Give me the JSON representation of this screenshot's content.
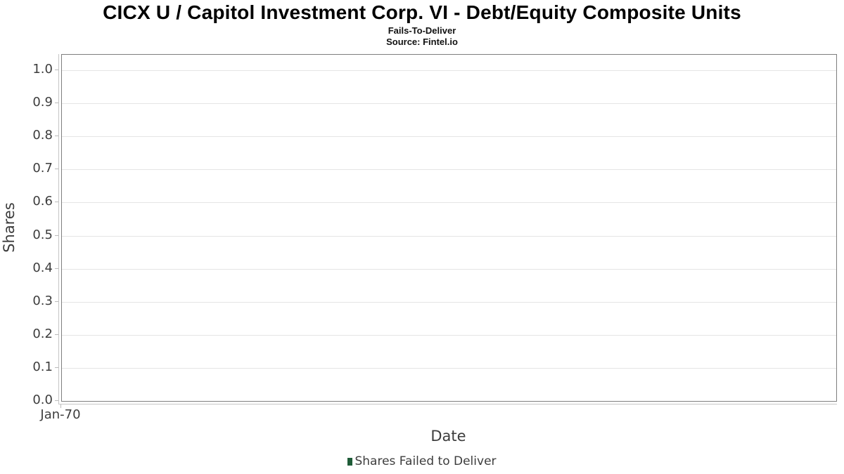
{
  "chart_data": {
    "type": "bar",
    "title": "CICX U / Capitol Investment Corp. VI - Debt/Equity Composite Units",
    "subtitle": "Fails-To-Deliver",
    "source": "Source: Fintel.io",
    "xlabel": "Date",
    "ylabel": "Shares",
    "x_ticks": [
      "Jan-70"
    ],
    "y_ticks": [
      "0.0",
      "0.1",
      "0.2",
      "0.3",
      "0.4",
      "0.5",
      "0.6",
      "0.7",
      "0.8",
      "0.9",
      "1.0"
    ],
    "ylim": [
      0.0,
      1.0
    ],
    "grid": "horizontal",
    "legend_position": "bottom-center",
    "series": [
      {
        "name": "Shares Failed to Deliver",
        "type": "bar",
        "color": "#1f5c38",
        "x": [],
        "values": []
      }
    ]
  },
  "colors": {
    "legend_marker": "#1f5c38",
    "axis_border": "#7e7e7e",
    "axis_line": "#c6c6c6",
    "grid_line": "#e5e5e5",
    "tick_text": "#3d3d3d",
    "title_text": "#000000"
  }
}
